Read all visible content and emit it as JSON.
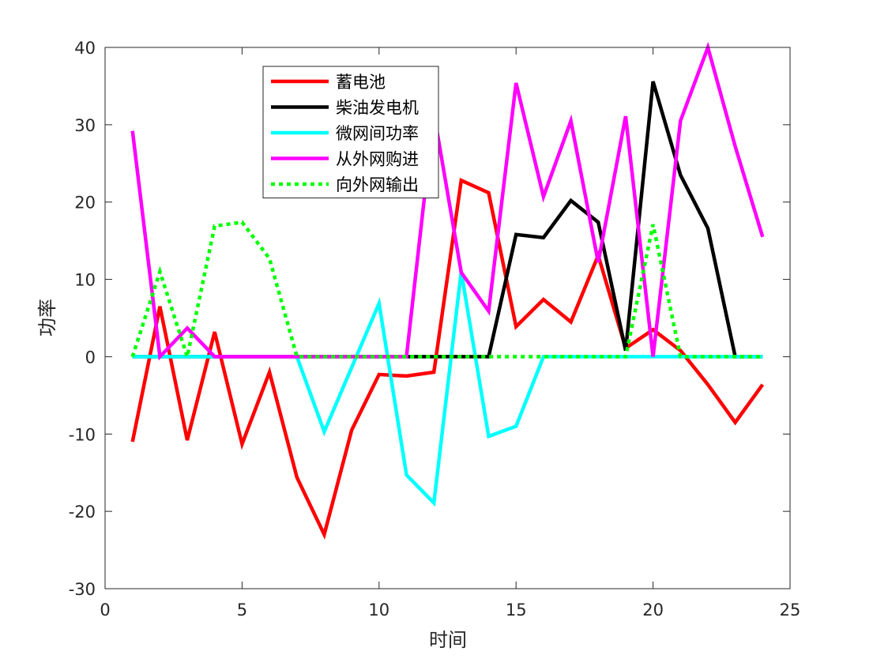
{
  "chart_data": {
    "type": "line",
    "xlabel": "时间",
    "ylabel": "功率",
    "xlim": [
      0,
      25
    ],
    "ylim": [
      -30,
      40
    ],
    "xticks": [
      0,
      5,
      10,
      15,
      20,
      25
    ],
    "yticks": [
      -30,
      -20,
      -10,
      0,
      10,
      20,
      30,
      40
    ],
    "grid": false,
    "legend_position": "top-center",
    "x": [
      1,
      2,
      3,
      4,
      5,
      6,
      7,
      8,
      9,
      10,
      11,
      12,
      13,
      14,
      15,
      16,
      17,
      18,
      19,
      20,
      21,
      22,
      23,
      24
    ],
    "series": [
      {
        "name": "蓄电池",
        "color": "#ff0000",
        "dash": "solid",
        "values": [
          -11,
          6.5,
          -10.8,
          3.2,
          -11.3,
          -2,
          -15.6,
          -23,
          -9.5,
          -2.3,
          -2.5,
          -2,
          22.8,
          21.2,
          3.9,
          7.4,
          4.5,
          13.1,
          1.1,
          3.5,
          0.8,
          -3.6,
          -8.5,
          -3.6
        ]
      },
      {
        "name": "柴油发电机",
        "color": "#000000",
        "dash": "solid",
        "values": [
          0,
          0,
          0,
          0,
          0,
          0,
          0,
          0,
          0,
          0,
          0,
          0,
          0,
          0,
          15.8,
          15.4,
          20.2,
          17.4,
          0.8,
          35.6,
          23.5,
          16.6,
          0,
          0
        ]
      },
      {
        "name": "微网间功率",
        "color": "#00ffff",
        "dash": "solid",
        "values": [
          0,
          0,
          0,
          0,
          0,
          0,
          0,
          -9.7,
          -1.4,
          6.9,
          -15.3,
          -18.9,
          11,
          -10.3,
          -9,
          0,
          0,
          0,
          0,
          0,
          0,
          0,
          0,
          0
        ]
      },
      {
        "name": "从外网购进",
        "color": "#ff00ff",
        "dash": "solid",
        "values": [
          29.2,
          0,
          3.7,
          0,
          0,
          0,
          0,
          0,
          0,
          0,
          0,
          31.5,
          10.9,
          5.9,
          35.4,
          20.7,
          30.5,
          12.2,
          31.1,
          0,
          30.5,
          40,
          27.2,
          15.5
        ]
      },
      {
        "name": "向外网输出",
        "color": "#00ff00",
        "dash": "dotted",
        "values": [
          0,
          11,
          0,
          16.9,
          17.4,
          12.7,
          0,
          0,
          0,
          0,
          0,
          0,
          0,
          0,
          0,
          0,
          0,
          0,
          0,
          17.1,
          0,
          0,
          0,
          0
        ]
      }
    ]
  }
}
